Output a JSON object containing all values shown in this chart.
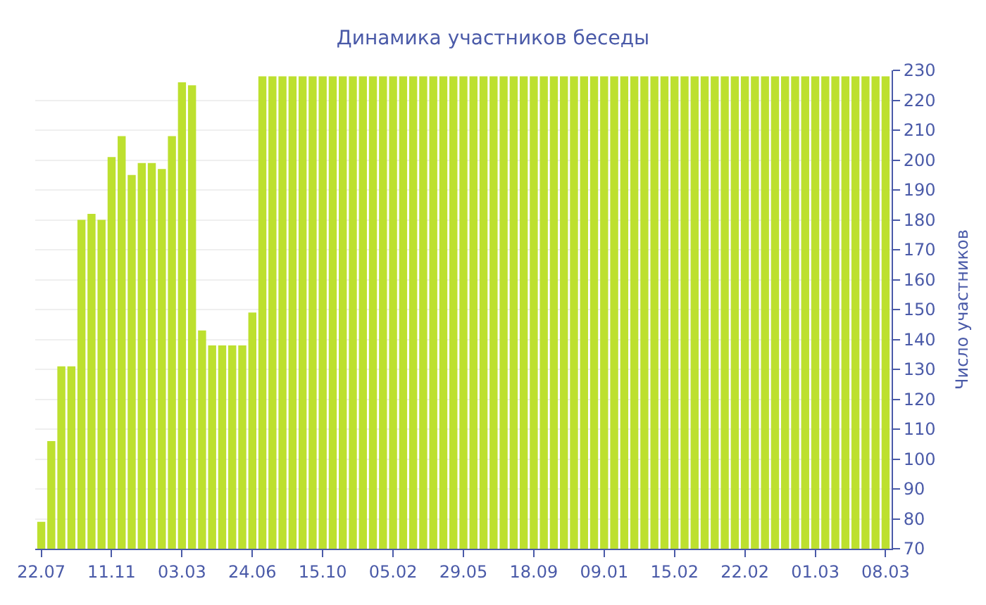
{
  "chart_data": {
    "type": "bar",
    "title": "Динамика участников беседы",
    "ylabel": "Число участников",
    "categories": [
      "22.07",
      null,
      null,
      null,
      null,
      null,
      null,
      "11.11",
      null,
      null,
      null,
      null,
      null,
      null,
      "03.03",
      null,
      null,
      null,
      null,
      null,
      null,
      "24.06",
      null,
      null,
      null,
      null,
      null,
      null,
      "15.10",
      null,
      null,
      null,
      null,
      null,
      null,
      "05.02",
      null,
      null,
      null,
      null,
      null,
      null,
      "29.05",
      null,
      null,
      null,
      null,
      null,
      null,
      "18.09",
      null,
      null,
      null,
      null,
      null,
      null,
      "09.01",
      null,
      null,
      null,
      null,
      null,
      null,
      "15.02",
      null,
      null,
      null,
      null,
      null,
      null,
      "22.02",
      null,
      null,
      null,
      null,
      null,
      null,
      "01.03",
      null,
      null,
      null,
      null,
      null,
      null,
      "08.03"
    ],
    "values": [
      79,
      106,
      131,
      131,
      180,
      182,
      180,
      201,
      208,
      195,
      199,
      199,
      197,
      208,
      226,
      225,
      143,
      138,
      138,
      138,
      138,
      149,
      228,
      228,
      228,
      228,
      228,
      228,
      228,
      228,
      228,
      228,
      228,
      228,
      228,
      228,
      228,
      228,
      228,
      228,
      228,
      228,
      228,
      228,
      228,
      228,
      228,
      228,
      228,
      228,
      228,
      228,
      228,
      228,
      228,
      228,
      228,
      228,
      228,
      228,
      228,
      228,
      228,
      228,
      228,
      228,
      228,
      228,
      228,
      228,
      228,
      228,
      228,
      228,
      228,
      228,
      228,
      228,
      228,
      228,
      228,
      228,
      228,
      228,
      228
    ],
    "color": "#bde02f",
    "ylim": [
      70,
      230
    ],
    "yticks": [
      70,
      80,
      90,
      100,
      110,
      120,
      130,
      140,
      150,
      160,
      170,
      180,
      190,
      200,
      210,
      220,
      230
    ],
    "grid": "y"
  }
}
